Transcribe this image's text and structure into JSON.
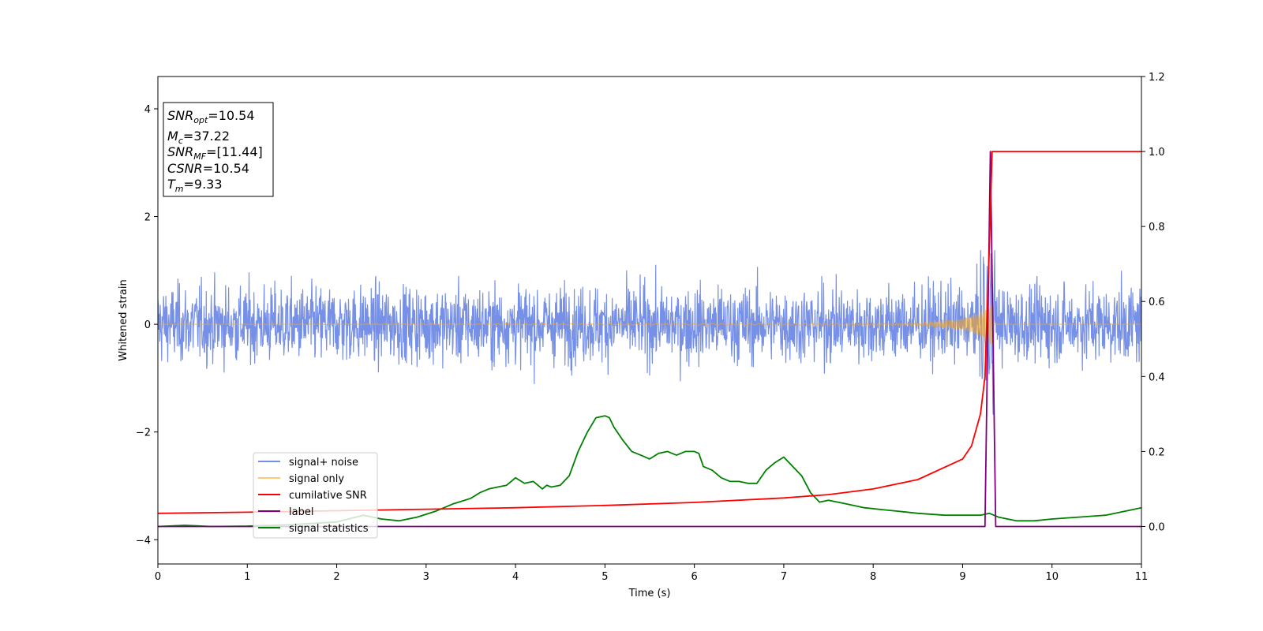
{
  "chart_data": {
    "type": "line",
    "xlabel": "Time (s)",
    "ylabel": "Whitened strain",
    "xlim": [
      0,
      11
    ],
    "ylim": [
      -4.45,
      4.6
    ],
    "y2lim": [
      -0.1,
      1.2
    ],
    "grid": false,
    "legend_position": "lower-left",
    "x_ticks": [
      "0",
      "1",
      "2",
      "3",
      "4",
      "5",
      "6",
      "7",
      "8",
      "9",
      "10",
      "11"
    ],
    "y_ticks": [
      "4",
      "2",
      "0",
      "−2",
      "−4"
    ],
    "y2_ticks": [
      "1.2",
      "1.0",
      "0.8",
      "0.6",
      "0.4",
      "0.2",
      "0.0"
    ],
    "colors": {
      "signal_noise": "#6f8ae6",
      "signal_only": "#f5a623",
      "cumulative_snr": "#ff0000",
      "label": "#800080",
      "signal_statistics": "#008000"
    },
    "annotation": {
      "snr_opt": "10.54",
      "mc": "37.22",
      "snr_mf": "[11.44]",
      "csnr": "10.54",
      "tm": "9.33"
    },
    "series": [
      {
        "name": "signal+ noise",
        "axis": "left",
        "description_values": {
          "mean": 0.0,
          "typical_amplitude": 0.9,
          "peak": 1.27,
          "trough": -1.32
        }
      },
      {
        "name": "signal only",
        "axis": "left",
        "x": [
          0,
          8.5,
          9.0,
          9.2,
          9.28,
          9.33,
          11
        ],
        "amplitude": [
          0.0,
          0.02,
          0.1,
          0.22,
          0.3,
          0.4,
          0.0
        ]
      },
      {
        "name": "cumilative SNR",
        "axis": "right",
        "x": [
          0,
          1,
          2,
          3,
          4,
          5,
          6,
          7,
          7.5,
          8,
          8.5,
          9,
          9.1,
          9.2,
          9.25,
          9.3,
          9.33,
          9.35,
          11
        ],
        "y": [
          0.035,
          0.038,
          0.042,
          0.046,
          0.05,
          0.056,
          0.064,
          0.076,
          0.085,
          0.1,
          0.125,
          0.18,
          0.215,
          0.3,
          0.4,
          0.75,
          1.0,
          1.0,
          1.0
        ]
      },
      {
        "name": "label",
        "axis": "right",
        "x": [
          0,
          9.25,
          9.31,
          9.37,
          11
        ],
        "y": [
          0.0,
          0.0,
          1.0,
          0.0,
          0.0
        ]
      },
      {
        "name": "signal statistics",
        "axis": "right",
        "x": [
          0,
          0.3,
          0.6,
          1.0,
          1.5,
          2.0,
          2.3,
          2.5,
          2.7,
          2.9,
          3.1,
          3.3,
          3.5,
          3.6,
          3.7,
          3.8,
          3.9,
          4.0,
          4.1,
          4.2,
          4.3,
          4.35,
          4.4,
          4.5,
          4.6,
          4.7,
          4.8,
          4.9,
          5.0,
          5.05,
          5.1,
          5.2,
          5.3,
          5.4,
          5.5,
          5.6,
          5.7,
          5.8,
          5.9,
          6.0,
          6.05,
          6.1,
          6.2,
          6.3,
          6.4,
          6.5,
          6.6,
          6.7,
          6.8,
          6.9,
          7.0,
          7.1,
          7.2,
          7.3,
          7.4,
          7.5,
          7.7,
          7.9,
          8.1,
          8.3,
          8.5,
          8.8,
          9.0,
          9.2,
          9.3,
          9.4,
          9.6,
          9.8,
          10.0,
          10.3,
          10.6,
          10.9,
          11.0
        ],
        "y": [
          0.0,
          0.003,
          0.0,
          0.001,
          0.005,
          0.012,
          0.03,
          0.02,
          0.015,
          0.025,
          0.04,
          0.06,
          0.075,
          0.09,
          0.1,
          0.105,
          0.11,
          0.13,
          0.115,
          0.12,
          0.1,
          0.11,
          0.105,
          0.11,
          0.135,
          0.2,
          0.25,
          0.29,
          0.295,
          0.29,
          0.265,
          0.23,
          0.2,
          0.19,
          0.18,
          0.195,
          0.2,
          0.19,
          0.2,
          0.2,
          0.195,
          0.16,
          0.15,
          0.13,
          0.12,
          0.12,
          0.115,
          0.115,
          0.15,
          0.17,
          0.185,
          0.16,
          0.135,
          0.09,
          0.065,
          0.07,
          0.06,
          0.05,
          0.045,
          0.04,
          0.035,
          0.03,
          0.03,
          0.03,
          0.035,
          0.025,
          0.015,
          0.015,
          0.02,
          0.025,
          0.03,
          0.045,
          0.05
        ]
      }
    ]
  }
}
